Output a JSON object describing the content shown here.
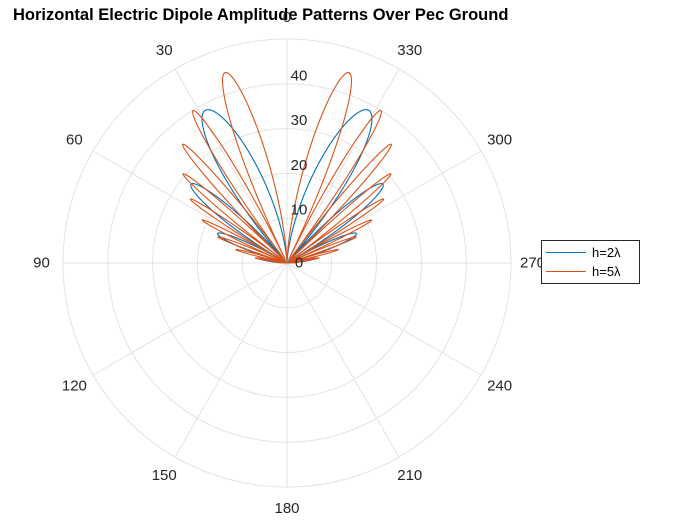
{
  "chart_data": {
    "type": "polar-line",
    "title": "Horizontal Electric Dipole Amplitude Patterns Over Pec Ground",
    "theta_direction": "counterclockwise",
    "theta_zero_location": "top",
    "theta_ticks": [
      0,
      30,
      60,
      90,
      120,
      150,
      180,
      210,
      240,
      270,
      300,
      330
    ],
    "theta_tick_labels": [
      "0",
      "30",
      "60",
      "90",
      "120",
      "150",
      "180",
      "210",
      "240",
      "270",
      "300",
      "330"
    ],
    "r_lim": [
      0,
      50
    ],
    "r_ticks": [
      0,
      10,
      20,
      30,
      40
    ],
    "r_tick_labels": [
      "0",
      "10",
      "20",
      "30",
      "40"
    ],
    "grid": true,
    "legend_position": "right",
    "series": [
      {
        "name": "h=2λ",
        "color": "#0072BD",
        "angle_range_deg": [
          -90,
          90
        ],
        "lobe_peaks": [
          {
            "theta": 0,
            "r": 0
          },
          {
            "theta": 29,
            "r": 44
          },
          {
            "theta": 48.6,
            "r": 38
          },
          {
            "theta": 61,
            "r": 37.5
          },
          {
            "theta": 75.5,
            "r": 36.5
          },
          {
            "theta": 90,
            "r": 0
          }
        ],
        "nulls_deg": [
          0,
          41.4,
          55.2,
          68.1,
          82.1,
          90
        ],
        "note": "symmetric about 0 (330 side mirrors 30 side)"
      },
      {
        "name": "h=5λ",
        "color": "#D95319",
        "angle_range_deg": [
          -90,
          90
        ],
        "lobe_peaks": [
          {
            "theta": 11,
            "r": 41
          },
          {
            "theta": 24,
            "r": 47
          },
          {
            "theta": 37,
            "r": 44
          },
          {
            "theta": 50,
            "r": 41
          },
          {
            "theta": 58,
            "r": 40
          },
          {
            "theta": 66,
            "r": 39
          },
          {
            "theta": 74,
            "r": 38
          },
          {
            "theta": 82,
            "r": 36
          },
          {
            "theta": 88,
            "r": 33
          }
        ],
        "nulls_deg": [
          0,
          17.5,
          30,
          38,
          47,
          54,
          60,
          67,
          72,
          78,
          84
        ],
        "note": "symmetric about 0 (330 side mirrors 30 side)"
      }
    ]
  }
}
